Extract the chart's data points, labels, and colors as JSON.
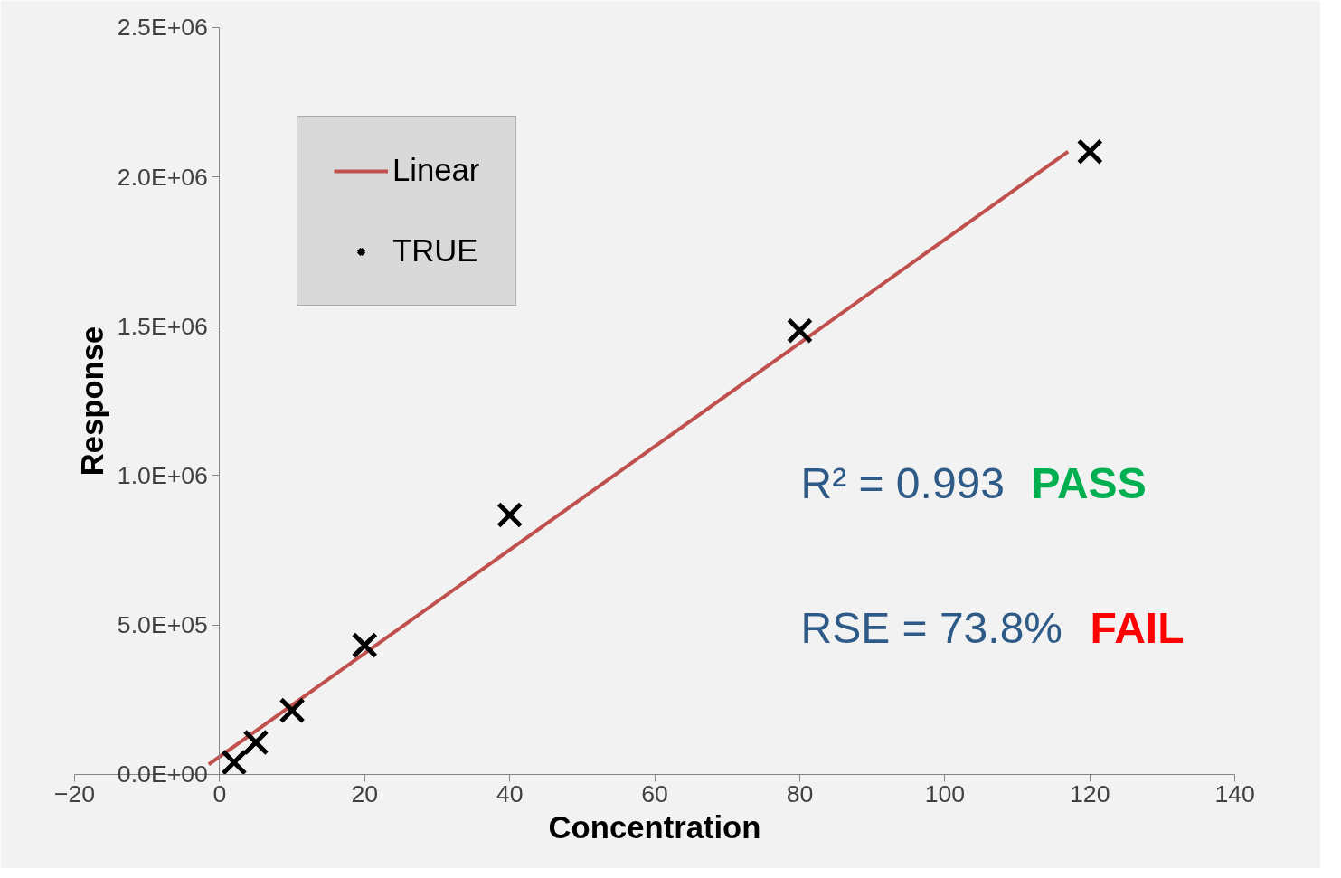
{
  "chart_data": {
    "type": "scatter",
    "xlabel": "Concentration",
    "ylabel": "Response",
    "series": [
      {
        "name": "Linear",
        "type": "line",
        "color": "#c0504d",
        "x": [
          -1.5,
          117
        ],
        "values": [
          33000,
          2084000
        ]
      },
      {
        "name": "TRUE",
        "color": "#000000",
        "marker": "cross",
        "x": [
          2,
          5,
          10,
          20,
          40,
          80,
          120
        ],
        "values": [
          40000,
          107000,
          214000,
          432000,
          868000,
          1485000,
          2084000
        ]
      }
    ],
    "xlim": [
      -20,
      140
    ],
    "xticks": [
      -20,
      0,
      20,
      40,
      60,
      80,
      100,
      120,
      140
    ],
    "ylim": [
      0,
      2500000
    ],
    "yticks": [
      {
        "value": 0,
        "label": "0.0E+00"
      },
      {
        "value": 500000,
        "label": "5.0E+05"
      },
      {
        "value": 1000000,
        "label": "1.0E+06"
      },
      {
        "value": 1500000,
        "label": "1.5E+06"
      },
      {
        "value": 2000000,
        "label": "2.0E+06"
      },
      {
        "value": 2500000,
        "label": "2.5E+06"
      }
    ],
    "legend": "top left",
    "grid": false,
    "annotations": [
      "R² = 0.993",
      "PASS",
      "RSE = 73.8%",
      "FAIL"
    ]
  }
}
